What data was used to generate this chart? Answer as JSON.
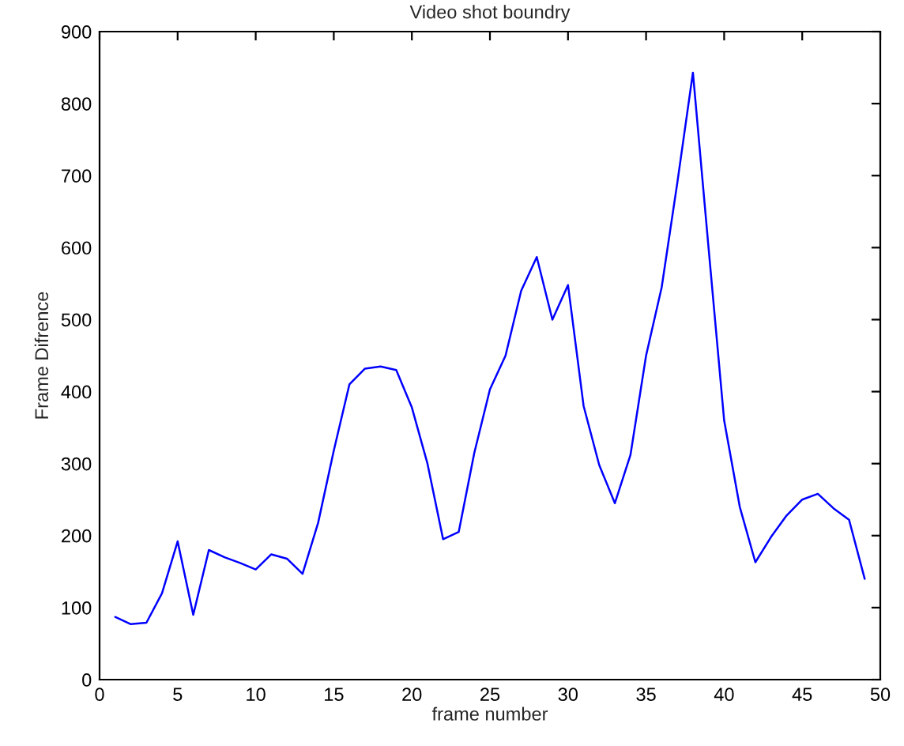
{
  "chart_data": {
    "type": "line",
    "title": "Video shot boundry",
    "xlabel": "frame number",
    "ylabel": "Frame Difrence",
    "x": [
      1,
      2,
      3,
      4,
      5,
      6,
      7,
      8,
      9,
      10,
      11,
      12,
      13,
      14,
      15,
      16,
      17,
      18,
      19,
      20,
      21,
      22,
      23,
      24,
      25,
      26,
      27,
      28,
      29,
      30,
      31,
      32,
      33,
      34,
      35,
      36,
      37,
      38,
      39,
      40,
      41,
      42,
      43,
      44,
      45,
      46,
      47,
      48,
      49
    ],
    "series": [
      {
        "color": "#0000ff",
        "values": [
          87,
          77,
          79,
          120,
          192,
          90,
          180,
          170,
          162,
          153,
          174,
          168,
          147,
          218,
          318,
          410,
          432,
          435,
          430,
          378,
          300,
          195,
          205,
          315,
          403,
          450,
          540,
          587,
          500,
          548,
          380,
          298,
          245,
          312,
          450,
          545,
          690,
          843,
          600,
          360,
          240,
          163,
          198,
          228,
          250,
          258,
          238,
          222,
          140
        ]
      }
    ],
    "xlim": [
      0,
      50
    ],
    "xticks": [
      0,
      5,
      10,
      15,
      20,
      25,
      30,
      35,
      40,
      45,
      50
    ],
    "ylim": [
      0,
      900
    ],
    "yticks": [
      0,
      100,
      200,
      300,
      400,
      500,
      600,
      700,
      800,
      900
    ],
    "grid": false,
    "legend": false,
    "marker": "none",
    "line_style": "solid"
  }
}
